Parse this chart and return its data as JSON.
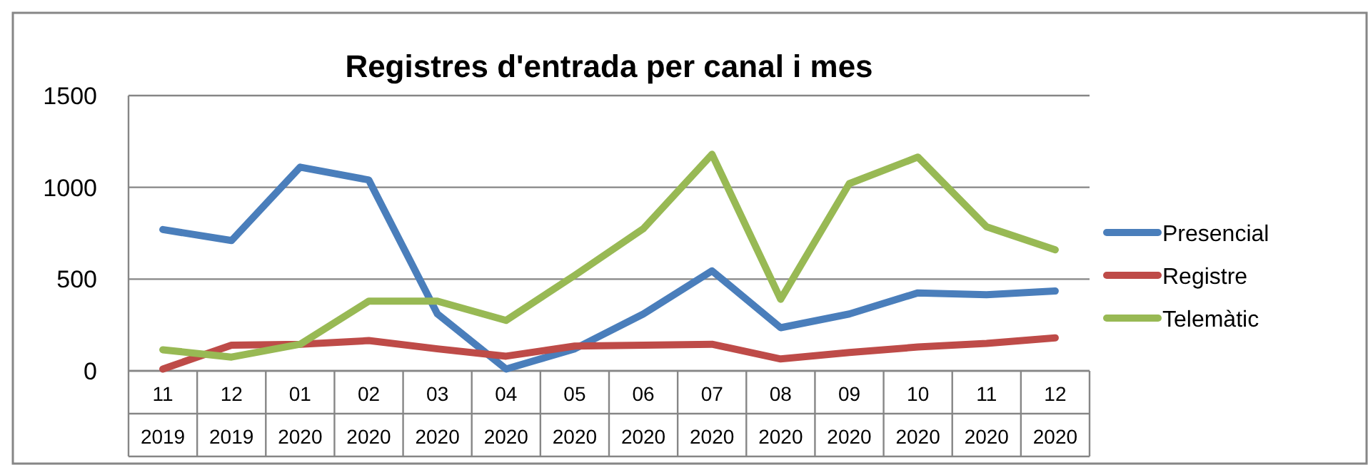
{
  "chart_data": {
    "type": "line",
    "title": "Registres d'entrada per canal i mes",
    "categories": [
      "11\n2019",
      "12\n2019",
      "01\n2020",
      "02\n2020",
      "03\n2020",
      "04\n2020",
      "05\n2020",
      "06\n2020",
      "07\n2020",
      "08\n2020",
      "09\n2020",
      "10\n2020",
      "11\n2020",
      "12\n2020"
    ],
    "series": [
      {
        "name": "Presencial",
        "color": "#4a7ebb",
        "values": [
          770,
          710,
          1110,
          1040,
          310,
          10,
          120,
          310,
          545,
          235,
          310,
          425,
          415,
          435
        ]
      },
      {
        "name": "Registre",
        "color": "#be4b48",
        "values": [
          10,
          140,
          145,
          165,
          120,
          80,
          135,
          140,
          145,
          65,
          100,
          130,
          150,
          180
        ]
      },
      {
        "name": "Telemàtic",
        "color": "#98b954",
        "values": [
          115,
          75,
          145,
          380,
          380,
          275,
          520,
          775,
          1180,
          390,
          1020,
          1165,
          785,
          660
        ]
      }
    ],
    "ylim": [
      0,
      1500
    ],
    "yticks": [
      0,
      500,
      1000,
      1500
    ],
    "grid": "y",
    "legend": "right",
    "marker": "none",
    "line_style": "solid"
  }
}
